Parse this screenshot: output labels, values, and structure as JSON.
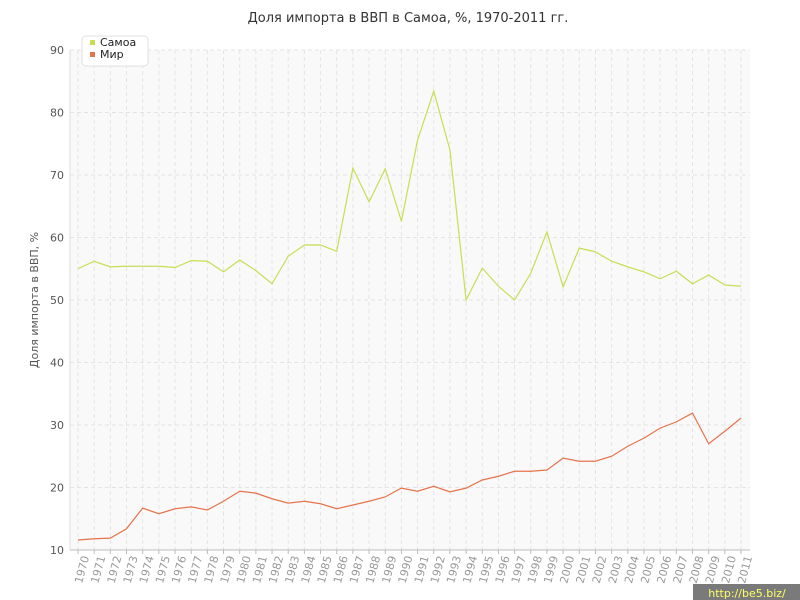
{
  "chart_data": {
    "type": "line",
    "title": "Доля импорта в ВВП в Самоа, %, 1970-2011 гг.",
    "y_label": "Доля импорта в ВВП, %",
    "watermark": "http://be5.biz/",
    "categories": [
      "1970",
      "1971",
      "1972",
      "1973",
      "1974",
      "1975",
      "1976",
      "1977",
      "1978",
      "1979",
      "1980",
      "1981",
      "1982",
      "1983",
      "1984",
      "1985",
      "1986",
      "1987",
      "1988",
      "1989",
      "1990",
      "1991",
      "1992",
      "1993",
      "1994",
      "1995",
      "1996",
      "1997",
      "1998",
      "1999",
      "2000",
      "2001",
      "2002",
      "2003",
      "2004",
      "2005",
      "2006",
      "2007",
      "2008",
      "2009",
      "2010",
      "2011"
    ],
    "series": [
      {
        "name": "Самоа",
        "color": "#c5df55",
        "values": [
          55.0,
          56.2,
          55.3,
          55.4,
          55.4,
          55.4,
          55.2,
          56.3,
          56.2,
          54.5,
          56.4,
          54.7,
          52.6,
          57.0,
          58.8,
          58.8,
          57.8,
          71.1,
          65.7,
          71.0,
          62.6,
          75.6,
          83.4,
          74.0,
          50.0,
          55.1,
          52.2,
          50.0,
          54.3,
          60.9,
          52.1,
          58.3,
          57.7,
          56.2,
          55.3,
          54.5,
          53.4,
          54.6,
          52.6,
          54.0,
          52.4,
          52.2
        ]
      },
      {
        "name": "Мир",
        "color": "#e5734b",
        "values": [
          11.6,
          11.8,
          11.9,
          13.4,
          16.7,
          15.8,
          16.6,
          16.9,
          16.4,
          17.8,
          19.4,
          19.1,
          18.2,
          17.5,
          17.8,
          17.4,
          16.6,
          17.2,
          17.8,
          18.5,
          19.9,
          19.4,
          20.2,
          19.3,
          19.9,
          21.2,
          21.8,
          22.6,
          22.6,
          22.8,
          24.7,
          24.2,
          24.2,
          25.0,
          26.6,
          27.9,
          29.5,
          30.5,
          31.9,
          27.0,
          29.0,
          31.1
        ]
      }
    ],
    "ylim": [
      10,
      90
    ],
    "yticks": [
      10,
      20,
      30,
      40,
      50,
      60,
      70,
      80,
      90
    ],
    "grid": true,
    "legend": "top-left"
  }
}
